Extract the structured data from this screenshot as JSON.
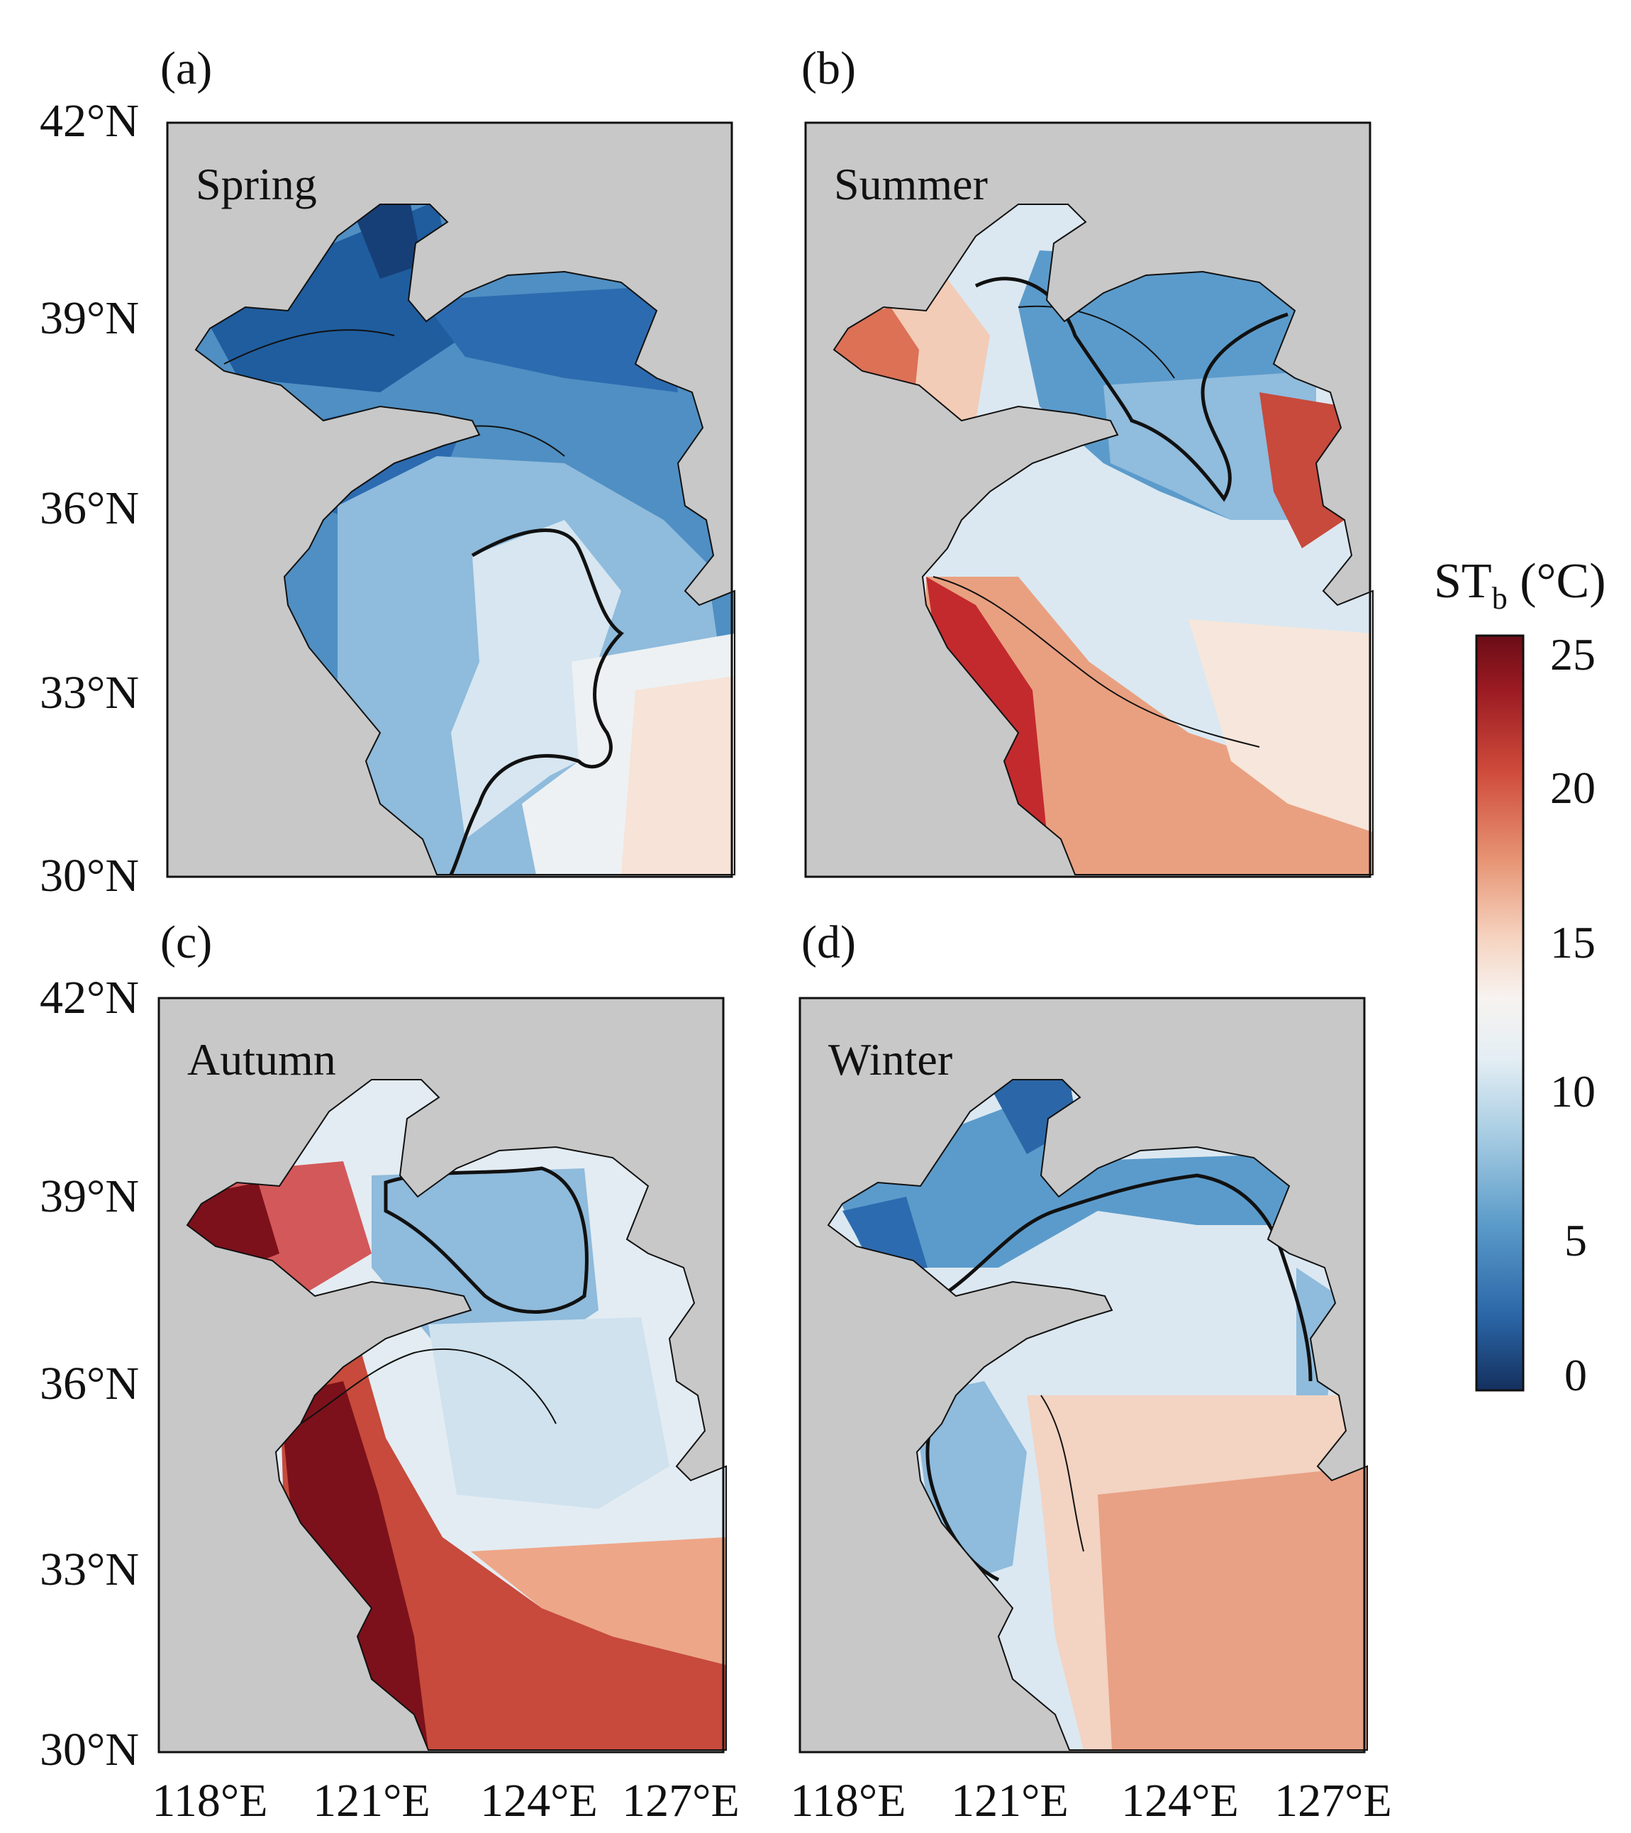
{
  "figure": {
    "colorbar": {
      "title_main": "ST",
      "title_sub": "b",
      "title_unit": " (°C)",
      "ticks": [
        "25",
        "20",
        "15",
        "10",
        "5",
        "0"
      ],
      "tick_values": [
        25,
        20,
        15,
        10,
        5,
        0
      ],
      "range": [
        0,
        25
      ],
      "colors": [
        "#14305e",
        "#2b67a8",
        "#5b9bc9",
        "#a8cde3",
        "#e4eef4",
        "#f7f3f0",
        "#f6d3c0",
        "#e79676",
        "#cf4b3b",
        "#9a1a22",
        "#6b0d17"
      ]
    },
    "land_color": "#c8c8c8",
    "contour_color": "#111111",
    "lat_labels": [
      "42°N",
      "39°N",
      "36°N",
      "33°N",
      "30°N"
    ],
    "lon_labels": [
      "118°E",
      "121°E",
      "124°E",
      "127°E"
    ],
    "panels": [
      {
        "id": "(a)",
        "season": "Spring"
      },
      {
        "id": "(b)",
        "season": "Summer"
      },
      {
        "id": "(c)",
        "season": "Autumn"
      },
      {
        "id": "(d)",
        "season": "Winter"
      }
    ]
  }
}
